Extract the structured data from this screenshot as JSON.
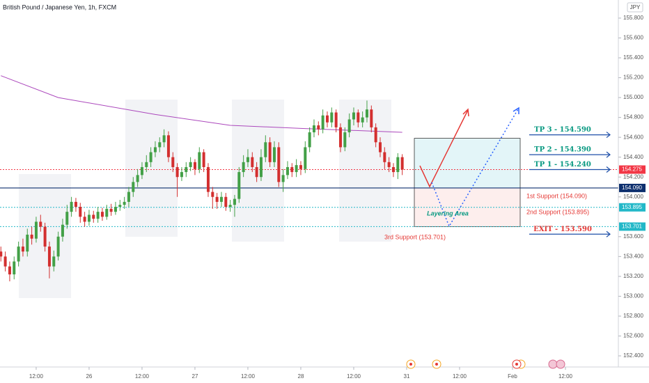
{
  "chart_data": {
    "type": "candlestick",
    "title": "British Pound / Japanese Yen, 1h, FXCM",
    "currency": "JPY",
    "up_color": "#43a047",
    "down_color": "#d32f2f",
    "x": [
      -8,
      -7,
      -6,
      -5,
      -4,
      -3,
      -2,
      -1,
      0,
      1,
      2,
      3,
      4,
      5,
      6,
      7,
      8,
      9,
      10,
      11,
      12,
      13,
      14,
      15,
      16,
      17,
      18,
      19,
      20,
      21,
      22,
      23,
      24,
      25,
      26,
      27,
      28,
      29,
      30,
      31,
      32,
      33,
      34,
      35,
      36,
      37,
      38,
      39,
      40,
      41,
      42,
      43,
      44,
      45,
      46,
      47,
      48,
      49,
      50,
      51,
      52,
      53,
      54,
      55,
      56,
      57,
      58,
      59,
      60,
      61,
      62,
      63,
      64,
      65,
      66,
      67,
      68,
      69,
      70,
      71,
      72,
      73,
      74,
      75,
      76,
      77,
      78,
      79,
      80,
      81,
      82,
      83
    ],
    "open": [
      153.45,
      153.4,
      153.3,
      153.22,
      153.35,
      153.5,
      153.45,
      153.62,
      153.58,
      153.75,
      153.7,
      153.5,
      153.3,
      153.4,
      153.6,
      153.72,
      153.85,
      153.95,
      153.9,
      153.8,
      153.75,
      153.82,
      153.78,
      153.85,
      153.8,
      153.88,
      153.85,
      153.9,
      153.92,
      153.95,
      154.05,
      154.15,
      154.22,
      154.3,
      154.35,
      154.45,
      154.5,
      154.55,
      154.62,
      154.4,
      154.3,
      154.2,
      154.25,
      154.3,
      154.35,
      154.28,
      154.45,
      154.3,
      154.05,
      154.0,
      153.95,
      154.0,
      153.9,
      153.92,
      153.98,
      154.25,
      154.35,
      154.4,
      154.3,
      154.2,
      154.4,
      154.55,
      154.35,
      154.5,
      154.15,
      154.22,
      154.3,
      154.25,
      154.32,
      154.28,
      154.5,
      154.65,
      154.72,
      154.68,
      154.82,
      154.75,
      154.85,
      154.7,
      154.5,
      154.65,
      154.78,
      154.85,
      154.75,
      154.8,
      154.88,
      154.7,
      154.55,
      154.45,
      154.35,
      154.3,
      154.25,
      154.4
    ],
    "high": [
      153.5,
      153.45,
      153.35,
      153.4,
      153.55,
      153.58,
      153.68,
      153.7,
      153.8,
      153.82,
      153.74,
      153.55,
      153.46,
      153.65,
      153.78,
      153.92,
      154.0,
      153.99,
      153.94,
      153.85,
      153.87,
      153.86,
      153.9,
      153.89,
      153.92,
      153.93,
      153.95,
      153.97,
      154.0,
      154.1,
      154.2,
      154.28,
      154.35,
      154.42,
      154.5,
      154.56,
      154.6,
      154.68,
      154.66,
      154.45,
      154.34,
      154.3,
      154.35,
      154.4,
      154.38,
      154.5,
      154.48,
      154.34,
      154.1,
      154.04,
      154.05,
      154.04,
      153.97,
      154.02,
      154.3,
      154.42,
      154.48,
      154.45,
      154.35,
      154.48,
      154.62,
      154.6,
      154.56,
      154.55,
      154.28,
      154.36,
      154.34,
      154.38,
      154.36,
      154.56,
      154.7,
      154.78,
      154.76,
      154.88,
      154.86,
      154.9,
      154.88,
      154.74,
      154.7,
      154.84,
      154.9,
      154.88,
      154.86,
      154.97,
      154.92,
      154.74,
      154.6,
      154.5,
      154.4,
      154.34,
      154.44,
      154.43
    ],
    "low": [
      153.35,
      153.25,
      153.15,
      153.17,
      153.3,
      153.4,
      153.4,
      153.52,
      153.54,
      153.65,
      153.45,
      153.18,
      153.25,
      153.36,
      153.55,
      153.68,
      153.8,
      153.85,
      153.74,
      153.7,
      153.71,
      153.74,
      153.74,
      153.76,
      153.77,
      153.81,
      153.82,
      153.86,
      153.88,
      153.9,
      154.0,
      154.1,
      154.18,
      154.25,
      154.3,
      154.4,
      154.45,
      154.5,
      154.35,
      154.25,
      154.0,
      154.16,
      154.2,
      154.26,
      154.22,
      154.24,
      154.25,
      154.0,
      153.88,
      153.88,
      153.9,
      153.86,
      153.85,
      153.8,
      153.94,
      154.2,
      154.3,
      154.25,
      154.15,
      154.16,
      154.35,
      154.3,
      154.3,
      154.1,
      154.05,
      154.18,
      154.2,
      154.2,
      154.22,
      154.24,
      154.45,
      154.6,
      154.62,
      154.64,
      154.7,
      154.7,
      154.65,
      154.45,
      154.46,
      154.6,
      154.72,
      154.7,
      154.7,
      154.75,
      154.65,
      154.5,
      154.4,
      154.28,
      154.25,
      154.2,
      154.18,
      154.22
    ],
    "close": [
      153.4,
      153.3,
      153.22,
      153.35,
      153.5,
      153.45,
      153.62,
      153.58,
      153.75,
      153.7,
      153.5,
      153.3,
      153.4,
      153.6,
      153.72,
      153.85,
      153.95,
      153.9,
      153.8,
      153.75,
      153.82,
      153.78,
      153.85,
      153.8,
      153.88,
      153.85,
      153.9,
      153.92,
      153.95,
      154.05,
      154.15,
      154.22,
      154.3,
      154.35,
      154.45,
      154.5,
      154.55,
      154.62,
      154.4,
      154.3,
      154.2,
      154.25,
      154.3,
      154.35,
      154.28,
      154.45,
      154.3,
      154.05,
      154.0,
      153.95,
      154.0,
      153.9,
      153.92,
      153.98,
      154.25,
      154.35,
      154.4,
      154.3,
      154.2,
      154.4,
      154.55,
      154.35,
      154.5,
      154.15,
      154.22,
      154.3,
      154.25,
      154.32,
      154.28,
      154.5,
      154.65,
      154.72,
      154.68,
      154.82,
      154.75,
      154.85,
      154.7,
      154.5,
      154.65,
      154.78,
      154.85,
      154.75,
      154.8,
      154.88,
      154.7,
      154.55,
      154.45,
      154.35,
      154.3,
      154.25,
      154.4,
      154.275
    ],
    "ma": {
      "color": "#ab47bc",
      "x": [
        -8,
        5,
        27,
        44,
        60,
        83
      ],
      "values": [
        155.22,
        155.0,
        154.83,
        154.72,
        154.69,
        154.65
      ]
    },
    "xlim": [
      -8.2,
      132
    ],
    "ylim": [
      152.288,
      155.982
    ],
    "xticks": [
      {
        "value": 0,
        "label": "12:00"
      },
      {
        "value": 12,
        "label": "26"
      },
      {
        "value": 24,
        "label": "12:00"
      },
      {
        "value": 36,
        "label": "27"
      },
      {
        "value": 48,
        "label": "12:00"
      },
      {
        "value": 60,
        "label": "28"
      },
      {
        "value": 72,
        "label": "12:00"
      },
      {
        "value": 84,
        "label": "31"
      },
      {
        "value": 96,
        "label": "12:00"
      },
      {
        "value": 108,
        "label": "Feb"
      },
      {
        "value": 120,
        "label": "12:00"
      }
    ],
    "yticks": [
      {
        "value": 155.8,
        "label": "155.800"
      },
      {
        "value": 155.6,
        "label": "155.600"
      },
      {
        "value": 155.4,
        "label": "155.400"
      },
      {
        "value": 155.2,
        "label": "155.200"
      },
      {
        "value": 155.0,
        "label": "155.000"
      },
      {
        "value": 154.8,
        "label": "154.800"
      },
      {
        "value": 154.6,
        "label": "154.600"
      },
      {
        "value": 154.4,
        "label": "154.400"
      },
      {
        "value": 154.2,
        "label": "154.200"
      },
      {
        "value": 154.0,
        "label": "154.000"
      },
      {
        "value": 153.6,
        "label": "153.600"
      },
      {
        "value": 153.4,
        "label": "153.400"
      },
      {
        "value": 153.2,
        "label": "153.200"
      },
      {
        "value": 153.0,
        "label": "153.000"
      },
      {
        "value": 152.8,
        "label": "152.800"
      },
      {
        "value": 152.6,
        "label": "152.600"
      },
      {
        "value": 152.4,
        "label": "152.400"
      }
    ],
    "price_lines": [
      {
        "value": 154.275,
        "label": "154.275",
        "color": "#f23645",
        "style": "dotted"
      },
      {
        "value": 154.09,
        "label": "154.090",
        "color": "#0d2f6e",
        "style": "solid"
      },
      {
        "value": 153.895,
        "label": "153.895",
        "color": "#22b8c8",
        "style": "dotted"
      },
      {
        "value": 153.701,
        "label": "153.701",
        "color": "#22b8c8",
        "style": "dotted"
      }
    ],
    "zones": [
      {
        "from": 154.09,
        "to": 154.59,
        "color": "#e3f5f8"
      },
      {
        "from": 153.701,
        "to": 154.09,
        "color": "#fdeeed"
      }
    ],
    "levels": [
      {
        "label": "TP 3 - 154.590",
        "value": 154.59,
        "color": "#089981"
      },
      {
        "label": "TP 2 - 154.390",
        "value": 154.39,
        "color": "#089981"
      },
      {
        "label": "TP 1 - 154.240",
        "value": 154.24,
        "color": "#089981"
      },
      {
        "label": "EXIT - 153.590",
        "value": 153.59,
        "color": "#e53935"
      }
    ],
    "supports": [
      "1st Support (154.090)",
      "2nd Support (153.895)",
      "3rd Support (153.701)"
    ],
    "zone_label": "Layering Area"
  }
}
